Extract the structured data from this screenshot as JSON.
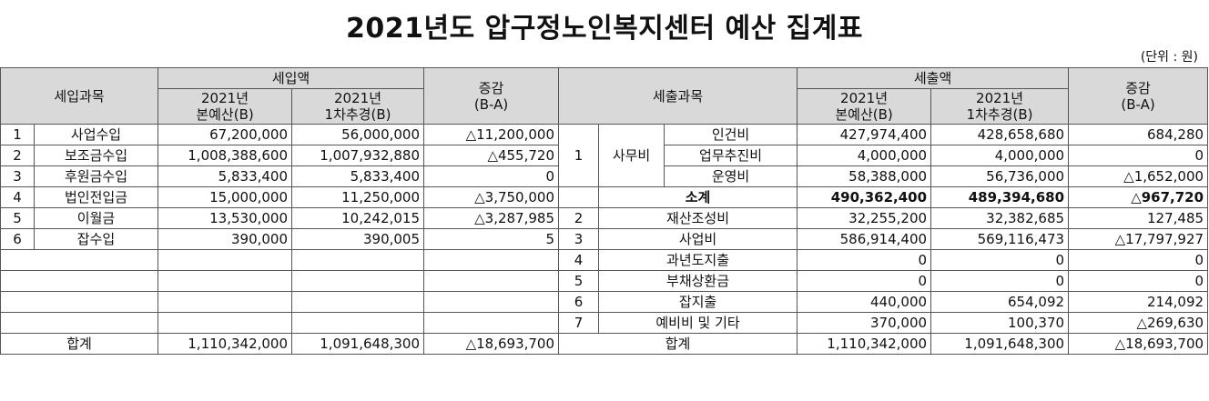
{
  "title": "2021년도 압구정노인복지센터 예산 집계표",
  "unit": "(단위 : 원)",
  "header": {
    "income_subject": "세입과목",
    "income_amount": "세입액",
    "col_budget": [
      "2021년",
      "본예산(B)"
    ],
    "col_revised": [
      "2021년",
      "1차추경(B)"
    ],
    "diff": [
      "증감",
      "(B-A)"
    ],
    "expense_subject": "세출과목",
    "expense_amount": "세출액"
  },
  "income_rows": [
    {
      "no": "1",
      "name": "사업수입",
      "budget": "67,200,000",
      "revised": "56,000,000",
      "diff": "△11,200,000"
    },
    {
      "no": "2",
      "name": "보조금수입",
      "budget": "1,008,388,600",
      "revised": "1,007,932,880",
      "diff": "△455,720"
    },
    {
      "no": "3",
      "name": "후원금수입",
      "budget": "5,833,400",
      "revised": "5,833,400",
      "diff": "0"
    },
    {
      "no": "4",
      "name": "법인전입금",
      "budget": "15,000,000",
      "revised": "11,250,000",
      "diff": "△3,750,000"
    },
    {
      "no": "5",
      "name": "이월금",
      "budget": "13,530,000",
      "revised": "10,242,015",
      "diff": "△3,287,985"
    },
    {
      "no": "6",
      "name": "잡수입",
      "budget": "390,000",
      "revised": "390,005",
      "diff": "5"
    }
  ],
  "expense_group": {
    "no": "1",
    "category": "사무비",
    "items": [
      {
        "name": "인건비",
        "budget": "427,974,400",
        "revised": "428,658,680",
        "diff": "684,280"
      },
      {
        "name": "업무추진비",
        "budget": "4,000,000",
        "revised": "4,000,000",
        "diff": "0"
      },
      {
        "name": "운영비",
        "budget": "58,388,000",
        "revised": "56,736,000",
        "diff": "△1,652,000"
      }
    ],
    "subtotal": {
      "name": "소계",
      "budget": "490,362,400",
      "revised": "489,394,680",
      "diff": "△967,720"
    }
  },
  "expense_rows": [
    {
      "no": "2",
      "name": "재산조성비",
      "budget": "32,255,200",
      "revised": "32,382,685",
      "diff": "127,485"
    },
    {
      "no": "3",
      "name": "사업비",
      "budget": "586,914,400",
      "revised": "569,116,473",
      "diff": "△17,797,927"
    },
    {
      "no": "4",
      "name": "과년도지출",
      "budget": "0",
      "revised": "0",
      "diff": "0"
    },
    {
      "no": "5",
      "name": "부채상환금",
      "budget": "0",
      "revised": "0",
      "diff": "0"
    },
    {
      "no": "6",
      "name": "잡지출",
      "budget": "440,000",
      "revised": "654,092",
      "diff": "214,092"
    },
    {
      "no": "7",
      "name": "예비비 및 기타",
      "budget": "370,000",
      "revised": "100,370",
      "diff": "△269,630"
    }
  ],
  "totals": {
    "label": "합계",
    "income_budget": "1,110,342,000",
    "income_revised": "1,091,648,300",
    "income_diff": "△18,693,700",
    "expense_budget": "1,110,342,000",
    "expense_revised": "1,091,648,300",
    "expense_diff": "△18,693,700"
  }
}
